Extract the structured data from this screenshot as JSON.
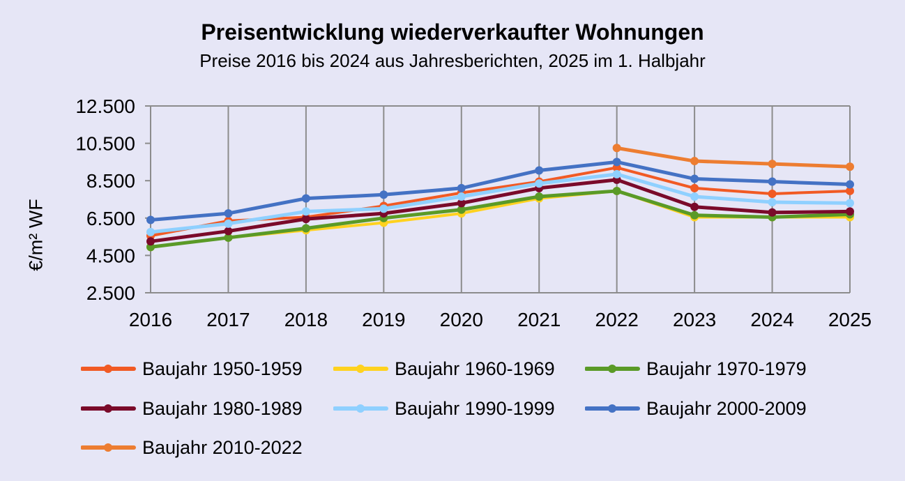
{
  "chart_data": {
    "type": "line",
    "title": "Preisentwicklung wiederverkaufter Wohnungen",
    "subtitle": "Preise 2016 bis 2024 aus Jahresberichten, 2025 im 1. Halbjahr",
    "ylabel": "€/m² WF",
    "xlabel": "",
    "x": [
      "2016",
      "2017",
      "2018",
      "2019",
      "2020",
      "2021",
      "2022",
      "2023",
      "2024",
      "2025"
    ],
    "ylim": [
      2500,
      12500
    ],
    "yticks": [
      2500,
      4500,
      6500,
      8500,
      10500,
      12500
    ],
    "ytick_labels": [
      "2.500",
      "4.500",
      "6.500",
      "8.500",
      "10.500",
      "12.500"
    ],
    "grid": "vertical lines at each year",
    "legend_position": "bottom",
    "series": [
      {
        "name": "Baujahr 1950-1959",
        "color": "#f15a24",
        "marker": "circle",
        "line_width": 4,
        "values": [
          5550,
          6350,
          6550,
          7150,
          7850,
          8450,
          9200,
          8100,
          7800,
          7950
        ]
      },
      {
        "name": "Baujahr 1960-1969",
        "color": "#ffd21f",
        "marker": "circle",
        "line_width": 4,
        "values": [
          4950,
          5450,
          5850,
          6250,
          6750,
          7550,
          7950,
          6550,
          6550,
          6550
        ]
      },
      {
        "name": "Baujahr 1970-1979",
        "color": "#5a9a27",
        "marker": "circle",
        "line_width": 5,
        "values": [
          4950,
          5450,
          5950,
          6500,
          6950,
          7650,
          7950,
          6650,
          6550,
          6700
        ]
      },
      {
        "name": "Baujahr 1980-1989",
        "color": "#7a0a2a",
        "marker": "circle",
        "line_width": 5,
        "values": [
          5250,
          5800,
          6450,
          6750,
          7300,
          8100,
          8550,
          7100,
          6800,
          6850
        ]
      },
      {
        "name": "Baujahr 1990-1999",
        "color": "#8fd0ff",
        "marker": "circle",
        "line_width": 5,
        "values": [
          5750,
          6200,
          6850,
          7000,
          7650,
          8350,
          8850,
          7650,
          7350,
          7300
        ]
      },
      {
        "name": "Baujahr 2000-2009",
        "color": "#4472c4",
        "marker": "circle",
        "line_width": 5,
        "values": [
          6400,
          6750,
          7550,
          7750,
          8100,
          9050,
          9500,
          8600,
          8450,
          8300
        ]
      },
      {
        "name": "Baujahr 2010-2022",
        "color": "#ed7d31",
        "marker": "circle",
        "line_width": 5,
        "values": [
          null,
          null,
          null,
          null,
          null,
          null,
          10250,
          9550,
          9400,
          9250
        ]
      }
    ]
  }
}
